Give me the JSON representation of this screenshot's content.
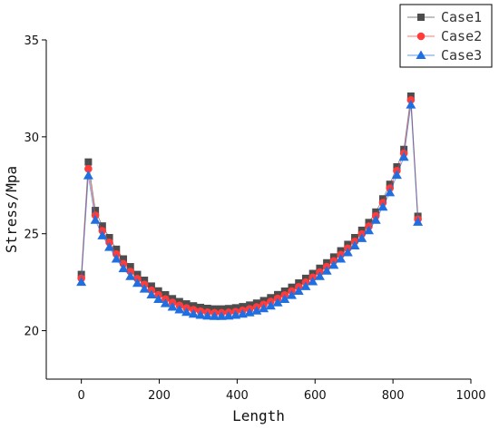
{
  "chart_data": {
    "type": "line",
    "title": "",
    "xlabel": "Length",
    "ylabel": "Stress/Mpa",
    "xlim": [
      -90,
      1000
    ],
    "ylim": [
      17.5,
      35
    ],
    "x_ticks": [
      0,
      200,
      400,
      600,
      800,
      1000
    ],
    "y_ticks": [
      20,
      25,
      30,
      35
    ],
    "grid": false,
    "legend_position": "top-right",
    "x": [
      0,
      18,
      36,
      54,
      72,
      90,
      108,
      126,
      144,
      162,
      180,
      198,
      216,
      234,
      252,
      270,
      288,
      306,
      324,
      342,
      360,
      378,
      396,
      414,
      432,
      450,
      468,
      486,
      504,
      522,
      540,
      558,
      576,
      594,
      612,
      630,
      648,
      666,
      684,
      702,
      720,
      738,
      756,
      774,
      792,
      810,
      828,
      846,
      864
    ],
    "series": [
      {
        "name": "Case1",
        "color": "#4d4d4d",
        "marker": "square",
        "values": [
          22.9,
          28.7,
          26.2,
          25.4,
          24.8,
          24.2,
          23.7,
          23.3,
          22.9,
          22.6,
          22.3,
          22.05,
          21.85,
          21.65,
          21.5,
          21.38,
          21.28,
          21.2,
          21.15,
          21.12,
          21.12,
          21.14,
          21.18,
          21.24,
          21.32,
          21.42,
          21.55,
          21.7,
          21.86,
          22.04,
          22.24,
          22.46,
          22.7,
          22.95,
          23.22,
          23.5,
          23.8,
          24.12,
          24.45,
          24.8,
          25.18,
          25.58,
          26.12,
          26.8,
          27.55,
          28.45,
          29.35,
          32.1,
          25.9
        ]
      },
      {
        "name": "Case2",
        "color": "#ff3b3b",
        "marker": "circle",
        "values": [
          22.7,
          28.35,
          25.95,
          25.15,
          24.55,
          23.95,
          23.45,
          23.05,
          22.68,
          22.38,
          22.08,
          21.85,
          21.63,
          21.45,
          21.3,
          21.17,
          21.08,
          21.0,
          20.95,
          20.92,
          20.92,
          20.94,
          20.98,
          21.04,
          21.12,
          21.22,
          21.35,
          21.5,
          21.66,
          21.84,
          22.04,
          22.26,
          22.5,
          22.75,
          23.02,
          23.3,
          23.6,
          23.92,
          24.25,
          24.6,
          24.98,
          25.38,
          25.92,
          26.6,
          27.35,
          28.25,
          29.15,
          31.9,
          25.75
        ]
      },
      {
        "name": "Case3",
        "color": "#1f6fe0",
        "marker": "triangle",
        "values": [
          22.5,
          28.0,
          25.7,
          24.9,
          24.3,
          23.7,
          23.2,
          22.8,
          22.45,
          22.15,
          21.85,
          21.62,
          21.4,
          21.22,
          21.08,
          20.95,
          20.86,
          20.8,
          20.76,
          20.74,
          20.74,
          20.76,
          20.8,
          20.86,
          20.93,
          21.02,
          21.14,
          21.28,
          21.44,
          21.62,
          21.82,
          22.04,
          22.28,
          22.53,
          22.8,
          23.08,
          23.38,
          23.7,
          24.03,
          24.38,
          24.76,
          25.16,
          25.7,
          26.38,
          27.12,
          28.02,
          28.95,
          31.65,
          25.6
        ]
      }
    ]
  }
}
